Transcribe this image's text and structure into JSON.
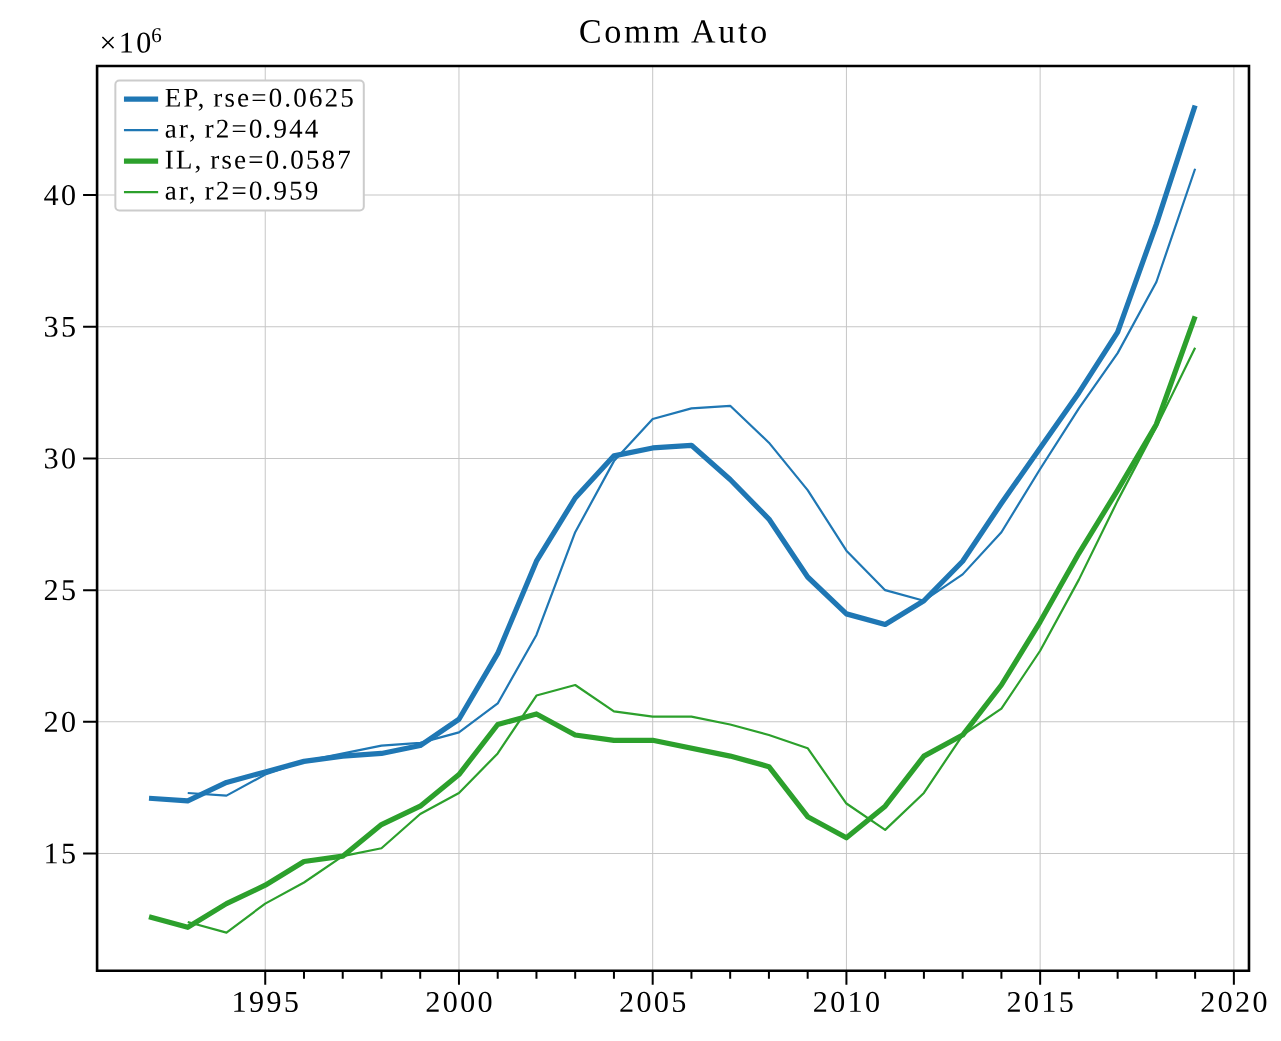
{
  "chart_data": {
    "type": "line",
    "title": "Comm Auto",
    "x": [
      1992,
      1993,
      1994,
      1995,
      1996,
      1997,
      1998,
      1999,
      2000,
      2001,
      2002,
      2003,
      2004,
      2005,
      2006,
      2007,
      2008,
      2009,
      2010,
      2011,
      2012,
      2013,
      2014,
      2015,
      2016,
      2017,
      2018,
      2019
    ],
    "series": [
      {
        "name": "EP, rse=0.0625",
        "color": "#1f77b4",
        "values": [
          17.1,
          17.0,
          17.7,
          18.1,
          18.5,
          18.7,
          18.8,
          19.1,
          20.1,
          22.6,
          26.1,
          28.5,
          30.1,
          30.4,
          30.5,
          29.2,
          27.7,
          25.5,
          24.1,
          23.7,
          24.6,
          26.1,
          28.3,
          30.4,
          32.5,
          34.8,
          38.9,
          43.4
        ]
      },
      {
        "name": "ar, r2=0.944",
        "color": "#1f77b4",
        "values": [
          null,
          17.3,
          17.2,
          18.0,
          18.5,
          18.8,
          19.1,
          19.2,
          19.6,
          20.7,
          23.3,
          27.2,
          29.9,
          31.5,
          31.9,
          32.0,
          30.6,
          28.8,
          26.5,
          25.0,
          24.6,
          25.6,
          27.2,
          29.6,
          31.9,
          34.0,
          36.7,
          41.0
        ]
      },
      {
        "name": "IL, rse=0.0587",
        "color": "#2ca02c",
        "values": [
          12.6,
          12.2,
          13.1,
          13.8,
          14.7,
          14.9,
          16.1,
          16.8,
          18.0,
          19.9,
          20.3,
          19.5,
          19.3,
          19.3,
          19.0,
          18.7,
          18.3,
          16.4,
          15.6,
          16.8,
          18.7,
          19.5,
          21.4,
          23.8,
          26.4,
          28.8,
          31.3,
          35.4
        ]
      },
      {
        "name": "ar, r2=0.959",
        "color": "#2ca02c",
        "values": [
          null,
          12.4,
          12.0,
          13.1,
          13.9,
          14.9,
          15.2,
          16.5,
          17.3,
          18.8,
          21.0,
          21.4,
          20.4,
          20.2,
          20.2,
          19.9,
          19.5,
          19.0,
          16.9,
          15.9,
          17.3,
          19.5,
          20.5,
          22.7,
          25.4,
          28.4,
          31.2,
          34.2
        ]
      }
    ],
    "xlim": [
      1990.66,
      2020.39
    ],
    "ylim": [
      10.55,
      44.9
    ],
    "xticks": [
      1995,
      2000,
      2005,
      2010,
      2015,
      2020
    ],
    "yticks": [
      15,
      20,
      25,
      30,
      35,
      40
    ],
    "annotations": [
      "×10$^{6}$"
    ],
    "grid": true,
    "legend": "top left",
    "marker": "none",
    "line_style": "solid"
  }
}
